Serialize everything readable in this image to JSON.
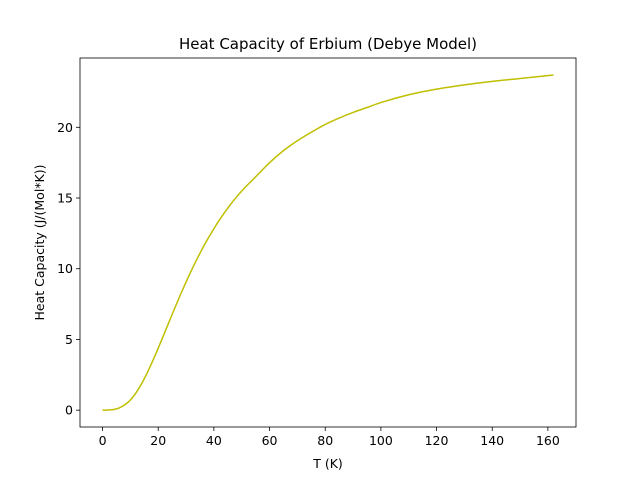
{
  "chart_data": {
    "type": "line",
    "title": "Heat Capacity of Erbium (Debye Model)",
    "xlabel": "T (K)",
    "ylabel": "Heat Capacity (J/(Mol*K))",
    "xlim": [
      -8.1,
      170.1
    ],
    "ylim": [
      -1.19,
      24.9
    ],
    "xticks": [
      0,
      20,
      40,
      60,
      80,
      100,
      120,
      140,
      160
    ],
    "yticks": [
      0,
      5,
      10,
      15,
      20
    ],
    "grid": false,
    "legend": "none",
    "series": [
      {
        "color": "#bfbf00",
        "x": [
          0,
          2,
          4,
          6,
          8,
          10,
          12,
          14,
          16,
          18,
          20,
          22,
          24,
          26,
          28,
          30,
          32,
          34,
          36,
          38,
          40,
          42,
          44,
          46,
          48,
          50,
          55,
          60,
          65,
          70,
          75,
          80,
          85,
          90,
          95,
          100,
          110,
          120,
          130,
          140,
          150,
          162
        ],
        "y": [
          0,
          0.01,
          0.05,
          0.16,
          0.38,
          0.72,
          1.22,
          1.86,
          2.62,
          3.47,
          4.38,
          5.33,
          6.29,
          7.24,
          8.17,
          9.06,
          9.91,
          10.71,
          11.47,
          12.17,
          12.83,
          13.45,
          14.02,
          14.55,
          15.04,
          15.5,
          16.5,
          17.5,
          18.35,
          19.05,
          19.65,
          20.2,
          20.65,
          21.05,
          21.4,
          21.75,
          22.3,
          22.7,
          23.0,
          23.25,
          23.45,
          23.7
        ]
      }
    ]
  }
}
